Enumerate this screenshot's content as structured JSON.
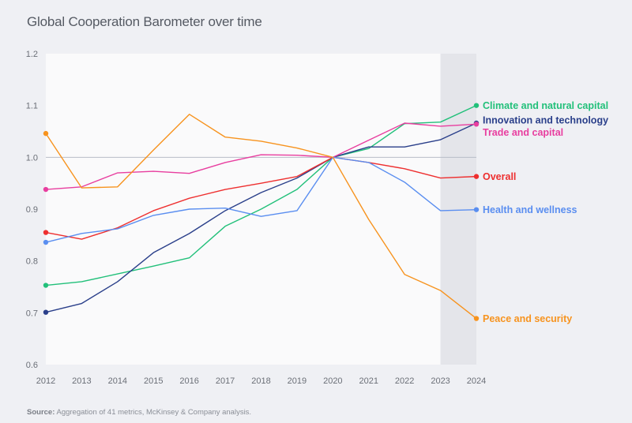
{
  "chart_data": {
    "type": "line",
    "title": "Global Cooperation Barometer over time",
    "xlabel": "",
    "ylabel": "",
    "x": [
      2012,
      2013,
      2014,
      2015,
      2016,
      2017,
      2018,
      2019,
      2020,
      2021,
      2022,
      2023,
      2024
    ],
    "x_tick_labels": [
      "2012",
      "2013",
      "2014",
      "2015",
      "2016",
      "2017",
      "2018",
      "2019",
      "2020",
      "2021",
      "2022",
      "2023",
      "2024"
    ],
    "ylim": [
      0.6,
      1.2
    ],
    "y_ticks": [
      0.6,
      0.7,
      0.8,
      0.9,
      1.0,
      1.1,
      1.2
    ],
    "y_tick_labels": [
      "0.6",
      "0.7",
      "0.8",
      "0.9",
      "1.0",
      "1.1",
      "1.2"
    ],
    "reference_line": 1.0,
    "shaded_region": {
      "from": 2023,
      "to": 2024
    },
    "grid": false,
    "legend_placement": "right (direct labels at line ends)",
    "series": [
      {
        "name": "Climate and natural capital",
        "color": "#22c07a",
        "values": [
          0.753,
          0.76,
          0.775,
          0.79,
          0.806,
          0.867,
          0.9,
          0.938,
          1.0,
          1.017,
          1.065,
          1.068,
          1.1
        ]
      },
      {
        "name": "Innovation and technology",
        "color": "#2a3f8a",
        "values": [
          0.701,
          0.718,
          0.76,
          0.816,
          0.853,
          0.897,
          0.932,
          0.96,
          1.0,
          1.02,
          1.02,
          1.034,
          1.066
        ]
      },
      {
        "name": "Trade and capital",
        "color": "#e83e9f",
        "values": [
          0.938,
          0.943,
          0.97,
          0.973,
          0.969,
          0.99,
          1.005,
          1.004,
          1.0,
          1.033,
          1.066,
          1.06,
          1.064
        ]
      },
      {
        "name": "Overall",
        "color": "#ee2f2f",
        "values": [
          0.855,
          0.842,
          0.864,
          0.897,
          0.921,
          0.938,
          0.95,
          0.963,
          1.0,
          0.99,
          0.978,
          0.96,
          0.963
        ]
      },
      {
        "name": "Health and wellness",
        "color": "#5a8ef0",
        "values": [
          0.836,
          0.853,
          0.862,
          0.888,
          0.9,
          0.902,
          0.886,
          0.897,
          1.0,
          0.99,
          0.952,
          0.897,
          0.899
        ]
      },
      {
        "name": "Peace and security",
        "color": "#f7931e",
        "values": [
          1.046,
          0.941,
          0.943,
          1.014,
          1.083,
          1.039,
          1.031,
          1.018,
          1.0,
          0.88,
          0.774,
          0.743,
          0.689
        ]
      }
    ]
  },
  "source": {
    "label": "Source:",
    "text": " Aggregation of 41 metrics, McKinsey & Company analysis."
  }
}
